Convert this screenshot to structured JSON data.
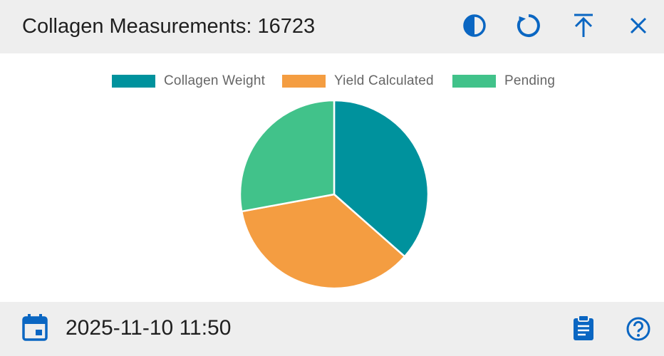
{
  "header": {
    "title": "Collagen Measurements: 16723",
    "icons": [
      "contrast-icon",
      "refresh-icon",
      "upload-icon",
      "close-icon"
    ]
  },
  "chart_data": {
    "type": "pie",
    "categories": [
      "Collagen Weight",
      "Yield Calculated",
      "Pending"
    ],
    "values": [
      36.5,
      35.6,
      27.9
    ],
    "colors": [
      "#00929d",
      "#f49d41",
      "#41c28a"
    ],
    "legend_position": "top-center",
    "title": ""
  },
  "footer": {
    "datetime": "2025-11-10 11:50",
    "icons": [
      "calendar-icon",
      "clipboard-icon",
      "help-icon"
    ]
  },
  "accent_color": "#0a66c2"
}
